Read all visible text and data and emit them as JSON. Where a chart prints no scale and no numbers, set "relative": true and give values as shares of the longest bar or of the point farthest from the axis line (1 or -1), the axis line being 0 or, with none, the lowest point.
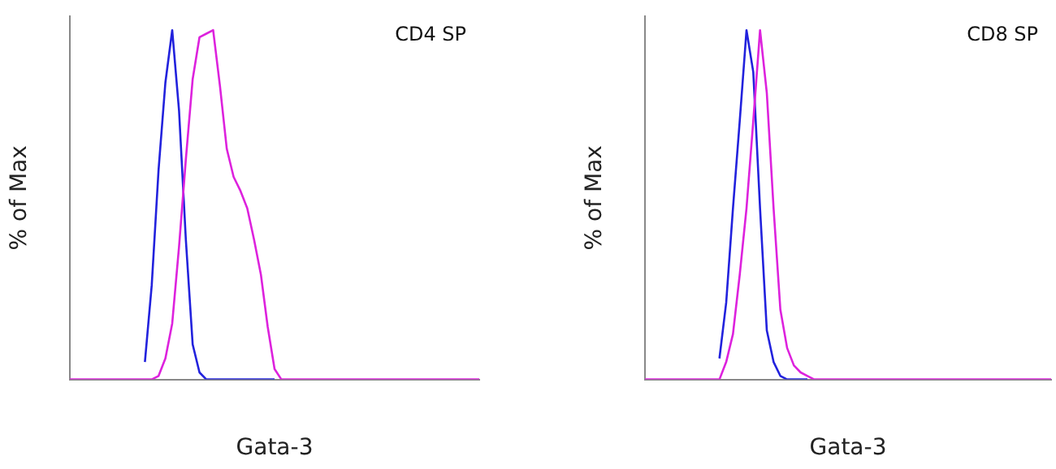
{
  "chart_data": [
    {
      "type": "line",
      "relative": true,
      "grid": false,
      "legend": false,
      "marker": "none",
      "ylabel": "% of Max",
      "xlabel": "Gata-3",
      "annotations": [
        "CD4 SP"
      ],
      "categories": [
        null,
        null,
        null,
        null,
        null,
        null,
        null,
        null,
        null,
        null,
        null,
        null,
        null,
        null,
        null,
        null,
        null,
        null,
        null,
        null,
        null,
        null,
        null,
        null,
        null,
        null,
        null,
        null,
        null,
        null,
        null,
        null,
        null,
        null,
        null,
        null,
        null,
        null,
        null,
        null,
        null,
        null,
        null,
        null,
        null,
        null,
        null,
        null,
        null,
        null,
        null,
        null,
        null,
        null,
        null,
        null,
        null,
        null,
        null,
        null,
        null
      ],
      "series": [
        {
          "color": "#2222dd",
          "values": [
            null,
            null,
            null,
            null,
            null,
            null,
            null,
            null,
            null,
            null,
            null,
            0.05,
            0.27,
            0.6,
            0.85,
            1,
            0.77,
            0.4,
            0.1,
            0.02,
            0,
            0,
            0,
            0,
            0,
            0,
            0,
            0,
            0,
            0,
            0,
            null,
            null,
            null,
            null,
            null,
            null,
            null,
            null,
            null,
            null,
            null,
            null,
            null,
            null,
            null,
            null,
            null,
            null,
            null,
            null,
            null,
            null,
            null,
            null,
            null,
            null,
            null,
            null,
            null,
            null
          ]
        },
        {
          "color": "#dd22dd",
          "values": [
            0,
            0,
            0,
            0,
            0,
            0,
            0,
            0,
            0,
            0,
            0,
            0,
            0,
            0.01,
            0.06,
            0.16,
            0.38,
            0.63,
            0.86,
            0.98,
            0.99,
            1,
            0.84,
            0.66,
            0.58,
            0.54,
            0.49,
            0.4,
            0.3,
            0.15,
            0.03,
            0,
            0,
            0,
            0,
            0,
            0,
            0,
            0,
            0,
            0,
            0,
            0,
            0,
            0,
            0,
            0,
            0,
            0,
            0,
            0,
            0,
            0,
            0,
            0,
            0,
            0,
            0,
            0,
            0,
            0
          ]
        }
      ]
    },
    {
      "type": "line",
      "relative": true,
      "grid": false,
      "legend": false,
      "marker": "none",
      "ylabel": "% of Max",
      "xlabel": "Gata-3",
      "annotations": [
        "CD8 SP"
      ],
      "categories": [
        null,
        null,
        null,
        null,
        null,
        null,
        null,
        null,
        null,
        null,
        null,
        null,
        null,
        null,
        null,
        null,
        null,
        null,
        null,
        null,
        null,
        null,
        null,
        null,
        null,
        null,
        null,
        null,
        null,
        null,
        null,
        null,
        null,
        null,
        null,
        null,
        null,
        null,
        null,
        null,
        null,
        null,
        null,
        null,
        null,
        null,
        null,
        null,
        null,
        null,
        null,
        null,
        null,
        null,
        null,
        null,
        null,
        null,
        null,
        null,
        null
      ],
      "series": [
        {
          "color": "#2222dd",
          "values": [
            null,
            null,
            null,
            null,
            null,
            null,
            null,
            null,
            null,
            null,
            null,
            0.06,
            0.22,
            0.49,
            0.74,
            1,
            0.88,
            0.49,
            0.14,
            0.05,
            0.01,
            0,
            0,
            0,
            0,
            null,
            null,
            null,
            null,
            null,
            null,
            null,
            null,
            null,
            null,
            null,
            null,
            null,
            null,
            null,
            null,
            null,
            null,
            null,
            null,
            null,
            null,
            null,
            null,
            null,
            null,
            null,
            null,
            null,
            null,
            null,
            null,
            null,
            null,
            null,
            null
          ]
        },
        {
          "color": "#dd22dd",
          "values": [
            0,
            0,
            0,
            0,
            0,
            0,
            0,
            0,
            0,
            0,
            0,
            0,
            0.05,
            0.13,
            0.3,
            0.49,
            0.74,
            1,
            0.82,
            0.49,
            0.2,
            0.09,
            0.04,
            0.02,
            0.01,
            0,
            0,
            0,
            0,
            0,
            0,
            0,
            0,
            0,
            0,
            0,
            0,
            0,
            0,
            0,
            0,
            0,
            0,
            0,
            0,
            0,
            0,
            0,
            0,
            0,
            0,
            0,
            0,
            0,
            0,
            0,
            0,
            0,
            0,
            0,
            0
          ]
        }
      ]
    }
  ]
}
